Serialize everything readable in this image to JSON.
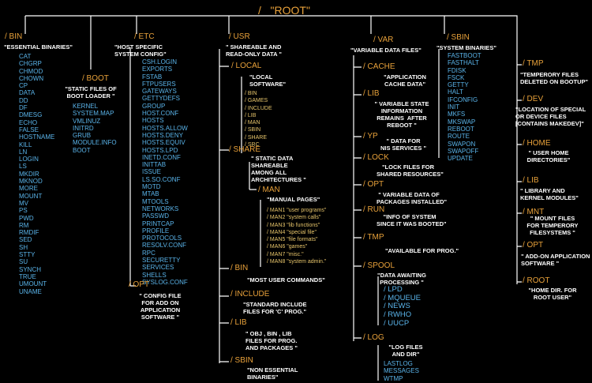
{
  "title": "/   \"ROOT\"",
  "bin": {
    "label": "/ BIN",
    "desc": "\"ESSENTIAL BINARIES\"",
    "items": "CAT\nCHGRP\nCHMOD\nCHOWN\nCP\nDATA\nDD\nDF\nDMESG\nECHO\nFALSE\nHOSTNAME\nKILL\nLN\nLOGIN\nLS\nMKDIR\nMKNOD\nMORE\nMOUNT\nMV\nPS\nPWD\nRM\nRMDIF\nSED\nSH\nSTTY\nSU\nSYNCH\nTRUE\nUMOUNT\nUNAME"
  },
  "boot": {
    "label": "/ BOOT",
    "desc": "\"STATIC FILES OF\nBOOT LOADER \"",
    "items": "KERNEL\nSYSTEM.MAP\nVMLINUZ\nINITRD\nGRUB\nMODULE.INFO\nBOOT"
  },
  "etc": {
    "label": "/ ETC",
    "desc": "\"HOST SPECIFIC\nSYSTEM CONFIG\"",
    "items": "CSH.LOGIN\nEXPORTS\nFSTAB\nFTPUSERS\nGATEWAYS\nGETTYDEFS\nGROUP\nHOST.CONF\nHOSTS\nHOSTS.ALLOW\nHOSTS.DENY\nHOSTS.EQUIV\nHOSTS.LPD\nINETD.CONF\nINITTAB\nISSUE\nLS.SO.CONF\nMOTD\nMTAB\nMTOOLS\nNETWORKS\nPASSWD\nPRINTCAP\nPROFILE\nPROTOCOLS\nRESOLV.CONF\nRPC\nSECURETTY\nSERVICES\nSHELLS\nSYSLOG.CONF"
  },
  "etc_opt": {
    "label": "/ OPT",
    "desc": "\" CONFIG FILE\nFOR ADD ON\nAPPLICATION\nSOFTWARE \""
  },
  "usr": {
    "label": "/ USR",
    "desc": "\" SHAREABLE AND\nREAD-ONLY DATA \"",
    "local": {
      "label": "/ LOCAL",
      "desc": "\"LOCAL\nSOFTWARE\"",
      "items": "/ BIN\n/ GAMES\n/ INCLUDE\n/ LIB\n/ MAN\n/ SBIN\n/ SHARE\n/ SRC"
    },
    "share": {
      "label": "/ SHARE",
      "desc": "\" STATIC DATA\nSHAREABLE\nAMONG ALL\nARCHITECTURES \""
    },
    "man": {
      "label": "/ MAN",
      "desc": "\"MANUAL PAGES\"",
      "items": "/ MAN1 \"user programs\"\n/ MAN2 \"system calls\"\n/ MAN3 \"lib functions\"\n/ MAN4 \"special file\"\n/ MAN5 \"file formats\"\n/ MAN6 \"games\"\n/ MAN7 \"misc.\"\n/ MAN8 \"system admin.\""
    },
    "bin": {
      "label": "/ BIN",
      "desc": "\"MOST USER COMMANDS\""
    },
    "include": {
      "label": "/ INCLUDE",
      "desc": "\"STANDARD INCLUDE\nFILES FOR 'C' PROG.\""
    },
    "lib": {
      "label": "/ LIB",
      "desc": "\" OBJ , BIN , LIB\nFILES FOR PROG.\nAND PACKAGES \""
    },
    "sbin": {
      "label": "/ SBIN",
      "desc": "\"NON ESSENTIAL\nBINARIES\""
    }
  },
  "var": {
    "label": "/ VAR",
    "desc": "\"VARIABLE DATA FILES\"",
    "cache": {
      "label": "/ CACHE",
      "desc": "\"APPLICATION\nCACHE DATA\""
    },
    "lib": {
      "label": "/ LIB",
      "desc": "\" VARIABLE STATE\nINFORMATION\nREMAINS  AFTER\nREBOOT \""
    },
    "yp": {
      "label": "/ YP",
      "desc": "\" DATA FOR\nNIS SERVICES \""
    },
    "lock": {
      "label": "/ LOCK",
      "desc": "\"LOCK FILES FOR\nSHARED RESOURCES\""
    },
    "opt": {
      "label": "/ OPT",
      "desc": "\" VARIABLE DATA OF\nPACKAGES INSTALLED\""
    },
    "run": {
      "label": "/ RUN",
      "desc": "\"INFO OF SYSTEM\nSINCE IT WAS BOOTED\""
    },
    "tmp": {
      "label": "/ TMP",
      "desc": "\"AVAILABLE FOR PROG.\""
    },
    "spool": {
      "label": "/ SPOOL",
      "desc": "\"DATA AWAITING\nPROCESSING \"",
      "items": "/ LPD\n/ MQUEUE\n/ NEWS\n/ RWHO\n/ UUCP"
    },
    "log": {
      "label": "/ LOG",
      "desc": "\"LOG FILES\nAND DIR\"",
      "items": "LASTLOG\nMESSAGES\nWTMP"
    }
  },
  "sbin": {
    "label": "/ SBIN",
    "desc": "\"SYSTEM BINARIES\"",
    "items": "FASTBOOT\nFASTHALT\nFDISK\nFSCK\nGETTY\nHALT\nIFCONFIG\nINIT\nMKFS\nMKSWAP\nREBOOT\nROUTE\nSWAPON\nSWAPOFF\nUPDATE"
  },
  "right": {
    "tmp": {
      "label": "/ TMP",
      "desc": "\"TEMPERORY FILES\nDELETED ON BOOTUP\""
    },
    "dev": {
      "label": "/ DEV",
      "desc": "\"LOCATION OF SPECIAL\nOR DEVICE FILES\n[CONTAINS MAKEDEV]\""
    },
    "home": {
      "label": "/ HOME",
      "desc": "\" USER HOME\nDIRECTORIES\""
    },
    "lib": {
      "label": "/ LIB",
      "desc": "\" LIBRARY AND\nKERNEL MODULES\""
    },
    "mnt": {
      "label": "/ MNT",
      "desc": "\" MOUNT FILES\nFOR TEMPERORY\nFILESYSTEMS \""
    },
    "opt": {
      "label": "/ OPT",
      "desc": "\" ADD-ON APPLICATION\nSOFTWARE \""
    },
    "root": {
      "label": "/ ROOT",
      "desc": "\"HOME DIR. FOR\nROOT USER\""
    }
  },
  "colors": {
    "background": "#000000",
    "folder": "#e8a13a",
    "description": "#ffffff",
    "file": "#5ab4ea",
    "man_note": "#e6c46a",
    "line": "#ffffff"
  }
}
